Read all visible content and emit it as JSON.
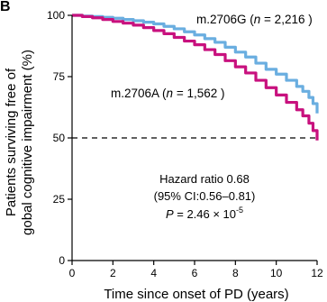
{
  "chart_data": {
    "type": "line",
    "panel_label": "B",
    "xlabel": "Time since onset of PD (years)",
    "ylabel_lines": [
      "Patients surviving free of",
      "gobal cognitive impairment (%)"
    ],
    "xlim": [
      0,
      12
    ],
    "ylim": [
      0,
      100
    ],
    "x_ticks": [
      "0",
      "2",
      "4",
      "6",
      "8",
      "10",
      "12"
    ],
    "y_ticks": [
      "0",
      "25",
      "50",
      "75",
      "100"
    ],
    "grid": false,
    "reference_line": {
      "y": 50,
      "style": "dashed"
    },
    "colors": {
      "m2706G": "#6aaee0",
      "m2706A": "#c8117e",
      "axis": "#000000"
    },
    "series": [
      {
        "key": "m2706G",
        "label_main": "m.2706G (",
        "label_n": "n",
        "label_rest": " = 2,216 )",
        "x": [
          0,
          0.5,
          1,
          1.5,
          2,
          2.5,
          3,
          3.5,
          4,
          4.5,
          5,
          5.5,
          6,
          6.5,
          7,
          7.5,
          8,
          8.5,
          9,
          9.5,
          10,
          10.5,
          11,
          11.3,
          11.6,
          11.8,
          12
        ],
        "y": [
          100,
          99.7,
          99.5,
          99.2,
          98.8,
          98.3,
          97.8,
          97.2,
          96.5,
          95.5,
          94.5,
          93.3,
          92.0,
          90.5,
          89.0,
          87.0,
          85.0,
          83.0,
          80.5,
          78.0,
          76.0,
          73.5,
          71.0,
          69.0,
          66.5,
          64.0,
          60.0
        ]
      },
      {
        "key": "m2706A",
        "label_main": "m.2706A (",
        "label_n": "n",
        "label_rest": " = 1,562 )",
        "x": [
          0,
          0.5,
          1,
          1.5,
          2,
          2.5,
          3,
          3.5,
          4,
          4.5,
          5,
          5.5,
          6,
          6.5,
          7,
          7.5,
          8,
          8.5,
          9,
          9.5,
          10,
          10.5,
          11,
          11.3,
          11.6,
          11.8,
          12
        ],
        "y": [
          100,
          99.5,
          99.0,
          98.3,
          97.5,
          96.8,
          96.0,
          95.0,
          93.8,
          92.5,
          91.0,
          89.5,
          88.0,
          86.0,
          84.0,
          81.5,
          79.0,
          76.5,
          73.5,
          70.5,
          67.5,
          64.5,
          61.5,
          59.0,
          56.0,
          53.0,
          49.0
        ]
      }
    ],
    "annotation": {
      "line1": "Hazard ratio 0.68",
      "line2": "(95% CI:0.56–0.81)",
      "line3_p": "P",
      "line3_mid": " = 2.46 × 10",
      "line3_exp": "-5"
    }
  }
}
